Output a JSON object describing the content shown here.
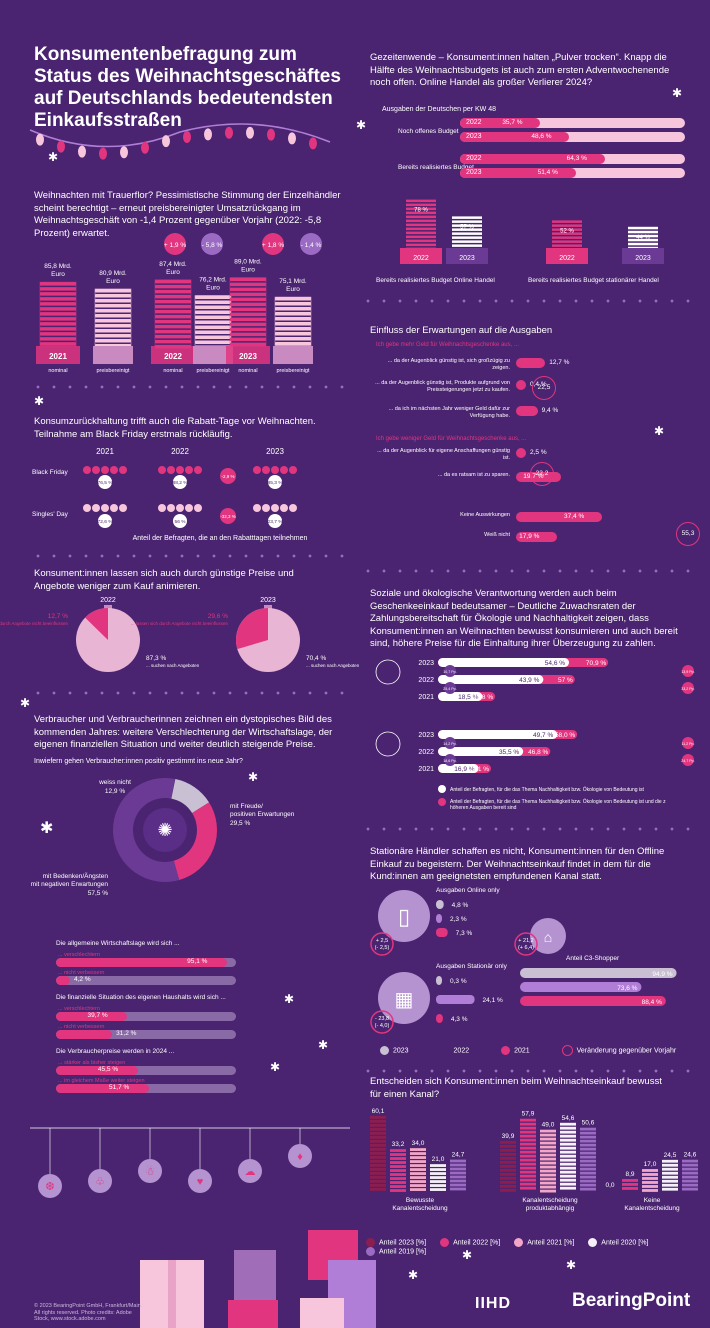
{
  "title": "Konsumentenbefragung zum Status des Weihnachtsgeschäftes auf Deutschlands bedeutendsten Einkaufsstraßen",
  "colors": {
    "bg": "#4a2470",
    "pink": "#e2357f",
    "lightpink": "#f7c6dc",
    "lilac": "#b07ed6",
    "grey": "#c9c0d3"
  },
  "s1": {
    "text": "Weihnachten mit Trauerflor? Pessimistische Stimmung der Einzelhändler scheint berechtigt – erneut preisbereinigter Umsatzrückgang im Weihnachtsgeschäft von -1,4 Prozent gegenüber Vorjahr (2022: -5,8 Prozent) erwartet.",
    "bottom_labels": [
      "nominal",
      "preisbereinigt",
      "nominal",
      "preisbereinigt",
      "nominal",
      "preisbereinigt"
    ]
  },
  "s2": {
    "text": "Konsumzurückhaltung trifft auch die Rabatt-Tage vor Weihnachten. Teilnahme am Black Friday erstmals rückläufig.",
    "years": [
      "2021",
      "2022",
      "2023"
    ],
    "rows": [
      "Black Friday",
      "Singles' Day"
    ],
    "caption": "Anteil der Befragten, die an den Rabatttagen teilnehmen"
  },
  "s3": {
    "text": "Konsument:innen lassen sich auch durch günstige Preise und Angebote weniger zum Kauf animieren.",
    "pies": [
      {
        "year": "2022",
        "small": "12,7 %",
        "small_label": "... lassen sich durch Angebote nicht beeinflussen",
        "big": "87,3 %",
        "big_label": "... suchen nach Angeboten"
      },
      {
        "year": "2023",
        "small": "29,6 %",
        "small_label": "... lassen sich durch Angebote nicht beeinflussen",
        "big": "70,4 %",
        "big_label": "... suchen nach Angeboten"
      }
    ]
  },
  "s4": {
    "text": "Verbraucher und Verbraucherinnen zeichnen ein dystopisches Bild des kommenden Jahres: weitere Verschlechterung der Wirtschaftslage, der eigenen finanziellen Situation und weiter deutlich steigende Preise.",
    "question": "Inwiefern gehen Verbraucher:innen positiv gestimmt ins neue Jahr?",
    "donut": [
      {
        "label": "weiss nicht",
        "value": "12,9 %"
      },
      {
        "label": "mit Freude/ positiven Erwartungen",
        "value": "29,5 %"
      },
      {
        "label": "mit Bedenken/Ängsten mit negativen Erwartungen",
        "value": "57,5 %"
      }
    ],
    "groups": [
      {
        "q": "Die allgemeine Wirtschaftslage wird sich ...",
        "items": [
          {
            "label": "... verschlechtern",
            "value": "95,1 %"
          },
          {
            "label": "... nicht verbessern",
            "value": "4,2 %"
          }
        ]
      },
      {
        "q": "Die finanzielle Situation des eigenen Haushalts wird sich ...",
        "items": [
          {
            "label": "... verschlechtern",
            "value": "39,7 %"
          },
          {
            "label": "... nicht verbessern",
            "value": "31,2 %"
          }
        ]
      },
      {
        "q": "Die Verbraucherpreise werden in 2024 ...",
        "items": [
          {
            "label": "... stärker als bisher steigen",
            "value": "45,5 %"
          },
          {
            "label": "... im gleichem Maße weiter steigen",
            "value": "51,7 %"
          }
        ]
      }
    ]
  },
  "r1": {
    "text": "Gezeitenwende – Konsument:innen halten „Pulver trocken“. Knapp die Hälfte des Weihnachtsbudgets ist auch zum ersten Adventwochenende noch offen. Online Handel als großer Verlierer 2024?",
    "sub": "Ausgaben der Deutschen per KW 48",
    "groups": [
      {
        "label": "Noch offenes Budget",
        "rows": [
          {
            "year": "2022",
            "value": "35,7 %"
          },
          {
            "year": "2023",
            "value": "48,6 %"
          }
        ]
      },
      {
        "label": "Bereits realisiertes Budget",
        "rows": [
          {
            "year": "2022",
            "value": "64,3 %"
          },
          {
            "year": "2023",
            "value": "51,4 %"
          }
        ]
      }
    ],
    "stacks": [
      {
        "year": "2022",
        "value": "78 %"
      },
      {
        "year": "2023",
        "value": "57 %"
      },
      {
        "year": "2022",
        "value": "52 %"
      },
      {
        "year": "2023",
        "value": "44 %"
      }
    ],
    "stack_labels": [
      "Bereits realisiertes Budget Online Handel",
      "Bereits realisiertes Budget stationärer Handel"
    ]
  },
  "r2": {
    "title": "Einfluss der Erwartungen auf die Ausgaben",
    "h1": "Ich gebe mehr Geld für Weihnachtsgeschenke aus, ...",
    "h2": "Ich gebe weniger Geld für Weihnachtsgeschenke aus, ...",
    "rows": [
      {
        "label": "... da der Augenblick günstig ist, sich großzügig zu zeigen.",
        "value": "12,7 %"
      },
      {
        "label": "... da der Augenblick günstig ist, Produkte aufgrund von Preissteigerungen jetzt zu kaufen.",
        "value": "0,4 %"
      },
      {
        "label": "... da ich im nächsten Jahr weniger Geld dafür zur Verfügung habe.",
        "value": "9,4 %"
      },
      {
        "label": "... da der Augenblick für eigene Anschaffungen günstig ist.",
        "value": "2,5 %"
      },
      {
        "label": "... da es ratsam ist zu sparen.",
        "value": "19,7 %"
      },
      {
        "label": "Keine Auswirkungen",
        "value": "37,4 %"
      },
      {
        "label": "Weiß nicht",
        "value": "17,9 %"
      }
    ],
    "circles": [
      "22,5",
      "22,2",
      "55,3"
    ]
  },
  "r3": {
    "text": "Soziale und ökologische Verantwortung werden auch beim Geschenkeeinkauf bedeutsamer – Deutliche Zuwachsraten der Zahlungsbereitschaft für Ökologie und Nachhaltigkeit zeigen, dass Konsument:innen an Weihnachten bewusst konsumieren und auch bereit sind, höhere Preise für die Einhaltung ihrer Überzeugung zu zahlen.",
    "years": [
      "2023",
      "2022",
      "2021"
    ],
    "g1": {
      "a": [
        "54,6 %",
        "43,9 %",
        "18,5 %"
      ],
      "b": [
        "70,9 %",
        "57 %",
        "23,8 %"
      ],
      "pp": [
        "10,7 Pp.",
        "25,4 Pp."
      ],
      "pp2": [
        "13,9 Pp.",
        "33,2 Pp."
      ]
    },
    "g2": {
      "a": [
        "49,7 %",
        "35,5 %",
        "16,9 %"
      ],
      "b": [
        "58,0 %",
        "46,8 %",
        "22,1 %"
      ],
      "pp": [
        "14,2 Pp.",
        "18,6 Pp."
      ],
      "pp2": [
        "11,2 Pp.",
        "24,7 Pp."
      ]
    },
    "legend": [
      "Anteil der Befragten, für die das Thema Nachhaltigkeit bzw. Ökologie von Bedeutung ist",
      "Anteil der Befragten, für die das Thema Nachhaltigkeit bzw. Ökologie von Bedeutung ist und die zu höheren Ausgaben bereit sind"
    ]
  },
  "r4": {
    "text": "Stationäre Händler schaffen es nicht, Konsument:innen für den Offline Einkauf zu begeistern. Der Weihnachtseinkauf findet in dem für die Kund:innen am geeignetsten empfundenen Kanal statt.",
    "online_label": "Ausgaben Online only",
    "online": [
      "4,8 %",
      "2,3 %",
      "7,3 %"
    ],
    "online_change": [
      "+ 2,5",
      "(- 2,5)"
    ],
    "stat_label": "Ausgaben Stationär only",
    "stat": [
      "0,3 %",
      "24,1 %",
      "4,3 %"
    ],
    "stat_change": [
      "- 23,8",
      "(- 4,0)"
    ],
    "c3_label": "Anteil C3-Shopper",
    "c3": [
      "94,9 %",
      "73,6 %",
      "88,4 %"
    ],
    "c3_change": [
      "+ 21,2",
      "(+ 6,4)"
    ],
    "legend": [
      "2023",
      "2022",
      "2021",
      "Veränderung gegenüber Vorjahr"
    ]
  },
  "r5": {
    "text": "Entscheiden sich Konsument:innen beim Weihnachtseinkauf bewusst für einen Kanal?",
    "groups": [
      "Bewusste Kanalentscheidung",
      "Kanalentscheidung produktabhängig",
      "Keine Kanalentscheidung"
    ],
    "legend": [
      "Anteil 2023 [%]",
      "Anteil 2022 [%]",
      "Anteil 2021 [%]",
      "Anteil 2020 [%]",
      "Anteil 2019 [%]"
    ]
  },
  "footer": {
    "copyright": "© 2023 BearingPoint GmbH, Frankfurt/Main. All rights reserved. Photo credits: Adobe Stock, www.stock.adobe.com",
    "logo1": "IIHD",
    "logo2": "BearingPoint"
  },
  "chart_data": [
    {
      "type": "bar",
      "title": "",
      "categories": [
        "2021 nominal",
        "2021 preisbereinigt",
        "2022 nominal",
        "2022 preisbereinigt",
        "2023 nominal",
        "2023 preisbereinigt"
      ],
      "values": [
        85.8,
        80.9,
        87.4,
        76.2,
        89.0,
        75.1
      ],
      "value_labels": [
        "85,8 Mrd. Euro",
        "80,9 Mrd. Euro",
        "87,4 Mrd. Euro",
        "76,2 Mrd. Euro",
        "89,0 Mrd. Euro",
        "75,1 Mrd. Euro"
      ],
      "changes": [
        "+ 1,9 %",
        "- 5,8 %",
        "+ 1,8 %",
        "- 1,4 %"
      ],
      "years": [
        "2021",
        "2022",
        "2023"
      ]
    },
    {
      "type": "bar",
      "title": "",
      "categories": [
        "2021",
        "2022",
        "2023"
      ],
      "series": [
        {
          "name": "Black Friday",
          "values": [
            76.5,
            88.2,
            85.3
          ]
        },
        {
          "name": "Singles' Day",
          "values": [
            72.6,
            56,
            23.7
          ]
        }
      ],
      "labels_bf": [
        "76,5 %",
        "88,2 %",
        "85,3 %"
      ],
      "labels_sd": [
        "72,6 %",
        "56 %",
        "23,7 %"
      ],
      "change_labels": [
        "-2,9 %",
        "-32,3 %"
      ]
    },
    {
      "type": "bar",
      "title": "",
      "categories": [
        "Bewusste Kanalentscheidung",
        "Kanalentscheidung produktabhängig",
        "Keine Kanalentscheidung"
      ],
      "series": [
        {
          "name": "Anteil 2023 [%]",
          "values": [
            60.1,
            39.9,
            0.0
          ]
        },
        {
          "name": "Anteil 2022 [%]",
          "values": [
            33.2,
            57.9,
            8.9
          ]
        },
        {
          "name": "Anteil 2021 [%]",
          "values": [
            34.0,
            49.0,
            17.0
          ]
        },
        {
          "name": "Anteil 2020 [%]",
          "values": [
            21.0,
            54.6,
            24.5
          ]
        },
        {
          "name": "Anteil 2019 [%]",
          "values": [
            24.7,
            50.6,
            24.6
          ]
        }
      ],
      "ylim": [
        0,
        65
      ]
    }
  ]
}
